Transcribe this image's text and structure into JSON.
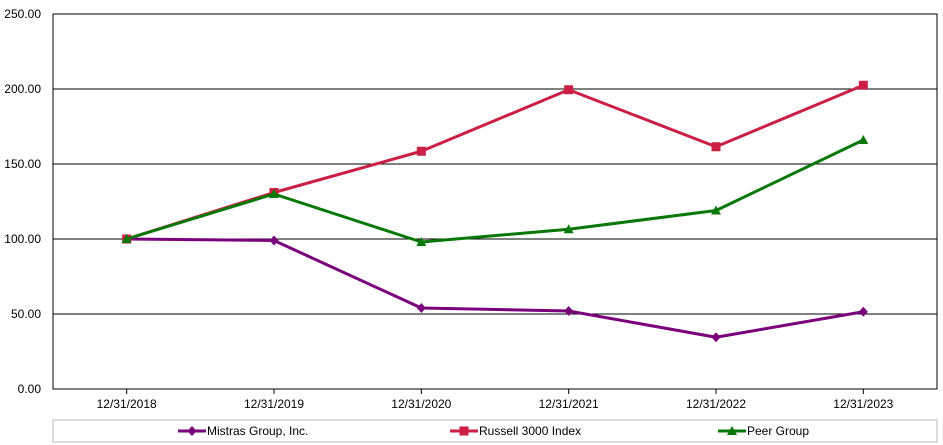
{
  "chart_data": {
    "type": "line",
    "categories": [
      "12/31/2018",
      "12/31/2019",
      "12/31/2020",
      "12/31/2021",
      "12/31/2022",
      "12/31/2023"
    ],
    "series": [
      {
        "name": "Mistras Group, Inc.",
        "values": [
          100.0,
          99.0,
          54.0,
          52.0,
          34.5,
          51.5
        ],
        "color": "#7b007b",
        "marker": "diamond"
      },
      {
        "name": "Russell 3000 Index",
        "values": [
          100.0,
          131.0,
          158.5,
          199.5,
          161.5,
          202.5
        ],
        "color": "#cc1f45",
        "marker": "square"
      },
      {
        "name": "Peer Group",
        "values": [
          100.0,
          130.0,
          98.0,
          106.5,
          119.0,
          166.0
        ],
        "color": "#087808",
        "marker": "triangle"
      }
    ],
    "y_ticks": [
      "0.00",
      "50.00",
      "100.00",
      "150.00",
      "200.00",
      "250.00"
    ],
    "ylim": [
      0,
      250
    ],
    "grid": true,
    "legend_position": "bottom",
    "title": "",
    "xlabel": "",
    "ylabel": ""
  }
}
